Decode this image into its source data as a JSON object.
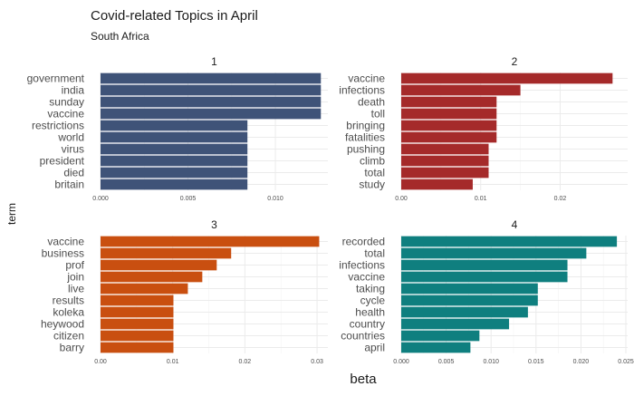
{
  "chart_data": {
    "type": "bar",
    "orientation": "horizontal",
    "title": "Covid-related Topics in April",
    "subtitle": "South Africa",
    "xlabel": "beta",
    "ylabel": "term",
    "grid": true,
    "panels": [
      {
        "name": "1",
        "color": "#3f5378",
        "xlim": [
          0,
          0.013
        ],
        "ticks": [
          0,
          0.005,
          0.01
        ],
        "tick_labels": [
          "0.000",
          "0.005",
          "0.010"
        ],
        "categories": [
          "government",
          "india",
          "sunday",
          "vaccine",
          "restrictions",
          "world",
          "virus",
          "president",
          "died",
          "britain"
        ],
        "values": [
          0.0126,
          0.0126,
          0.0126,
          0.0126,
          0.0084,
          0.0084,
          0.0084,
          0.0084,
          0.0084,
          0.0084
        ]
      },
      {
        "name": "2",
        "color": "#a52a2a",
        "xlim": [
          0,
          0.0285
        ],
        "ticks": [
          0,
          0.01,
          0.02
        ],
        "tick_labels": [
          "0.00",
          "0.01",
          "0.02"
        ],
        "categories": [
          "vaccine",
          "infections",
          "death",
          "toll",
          "bringing",
          "fatalities",
          "pushing",
          "climb",
          "total",
          "study"
        ],
        "values": [
          0.0266,
          0.015,
          0.012,
          0.012,
          0.012,
          0.012,
          0.011,
          0.011,
          0.011,
          0.009
        ]
      },
      {
        "name": "3",
        "color": "#c94f10",
        "xlim": [
          0,
          0.0315
        ],
        "ticks": [
          0,
          0.01,
          0.02,
          0.03
        ],
        "tick_labels": [
          "0.00",
          "0.01",
          "0.02",
          "0.03"
        ],
        "categories": [
          "vaccine",
          "business",
          "prof",
          "join",
          "live",
          "results",
          "koleka",
          "heywood",
          "citizen",
          "barry"
        ],
        "values": [
          0.0303,
          0.0181,
          0.0161,
          0.0141,
          0.0121,
          0.0101,
          0.0101,
          0.0101,
          0.0101,
          0.0101
        ]
      },
      {
        "name": "4",
        "color": "#0f7f7f",
        "xlim": [
          0,
          0.0252
        ],
        "ticks": [
          0,
          0.005,
          0.01,
          0.015,
          0.02,
          0.025
        ],
        "tick_labels": [
          "0.000",
          "0.005",
          "0.010",
          "0.015",
          "0.020",
          "0.025"
        ],
        "categories": [
          "recorded",
          "total",
          "infections",
          "vaccine",
          "taking",
          "cycle",
          "health",
          "country",
          "countries",
          "april"
        ],
        "values": [
          0.024,
          0.0206,
          0.0185,
          0.0185,
          0.0152,
          0.0152,
          0.0141,
          0.012,
          0.0087,
          0.0077
        ]
      }
    ]
  }
}
